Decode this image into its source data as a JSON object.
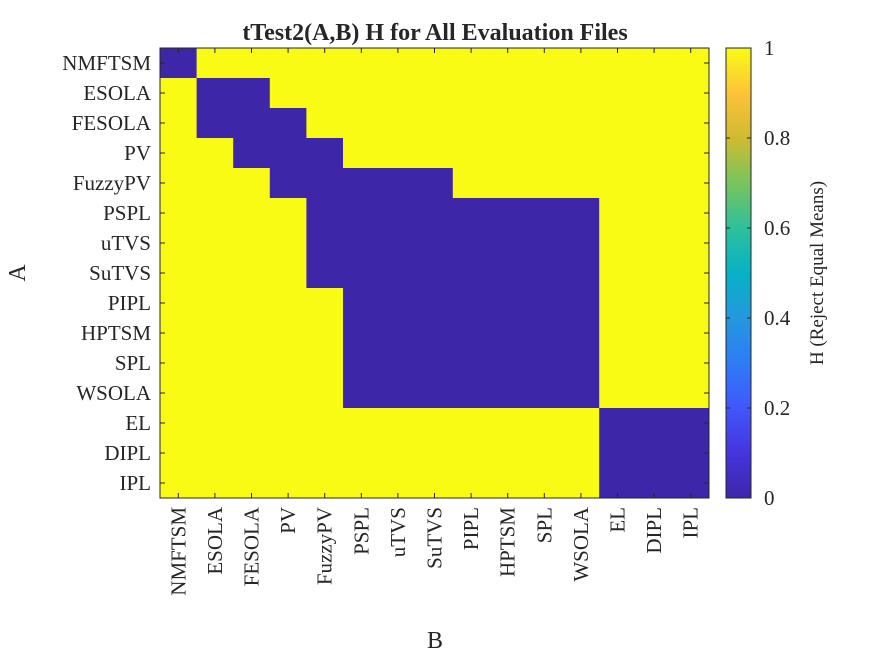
{
  "chart_data": {
    "type": "heatmap",
    "title": "tTest2(A,B) H for All Evaluation Files",
    "xlabel": "B",
    "ylabel": "A",
    "x_categories": [
      "NMFTSM",
      "ESOLA",
      "FESOLA",
      "PV",
      "FuzzyPV",
      "PSPL",
      "uTVS",
      "SuTVS",
      "PIPL",
      "HPTSM",
      "SPL",
      "WSOLA",
      "EL",
      "DIPL",
      "IPL"
    ],
    "y_categories": [
      "NMFTSM",
      "ESOLA",
      "FESOLA",
      "PV",
      "FuzzyPV",
      "PSPL",
      "uTVS",
      "SuTVS",
      "PIPL",
      "HPTSM",
      "SPL",
      "WSOLA",
      "EL",
      "DIPL",
      "IPL"
    ],
    "values": [
      [
        0,
        1,
        1,
        1,
        1,
        1,
        1,
        1,
        1,
        1,
        1,
        1,
        1,
        1,
        1
      ],
      [
        1,
        0,
        0,
        1,
        1,
        1,
        1,
        1,
        1,
        1,
        1,
        1,
        1,
        1,
        1
      ],
      [
        1,
        0,
        0,
        0,
        1,
        1,
        1,
        1,
        1,
        1,
        1,
        1,
        1,
        1,
        1
      ],
      [
        1,
        1,
        0,
        0,
        0,
        1,
        1,
        1,
        1,
        1,
        1,
        1,
        1,
        1,
        1
      ],
      [
        1,
        1,
        1,
        0,
        0,
        0,
        0,
        0,
        1,
        1,
        1,
        1,
        1,
        1,
        1
      ],
      [
        1,
        1,
        1,
        1,
        0,
        0,
        0,
        0,
        0,
        0,
        0,
        0,
        1,
        1,
        1
      ],
      [
        1,
        1,
        1,
        1,
        0,
        0,
        0,
        0,
        0,
        0,
        0,
        0,
        1,
        1,
        1
      ],
      [
        1,
        1,
        1,
        1,
        0,
        0,
        0,
        0,
        0,
        0,
        0,
        0,
        1,
        1,
        1
      ],
      [
        1,
        1,
        1,
        1,
        1,
        0,
        0,
        0,
        0,
        0,
        0,
        0,
        1,
        1,
        1
      ],
      [
        1,
        1,
        1,
        1,
        1,
        0,
        0,
        0,
        0,
        0,
        0,
        0,
        1,
        1,
        1
      ],
      [
        1,
        1,
        1,
        1,
        1,
        0,
        0,
        0,
        0,
        0,
        0,
        0,
        1,
        1,
        1
      ],
      [
        1,
        1,
        1,
        1,
        1,
        0,
        0,
        0,
        0,
        0,
        0,
        0,
        1,
        1,
        1
      ],
      [
        1,
        1,
        1,
        1,
        1,
        1,
        1,
        1,
        1,
        1,
        1,
        1,
        0,
        0,
        0
      ],
      [
        1,
        1,
        1,
        1,
        1,
        1,
        1,
        1,
        1,
        1,
        1,
        1,
        0,
        0,
        0
      ],
      [
        1,
        1,
        1,
        1,
        1,
        1,
        1,
        1,
        1,
        1,
        1,
        1,
        0,
        0,
        0
      ]
    ],
    "colorbar": {
      "label": "H (Reject Equal Means)",
      "range": [
        0,
        1
      ],
      "ticks": [
        "0",
        "0.2",
        "0.4",
        "0.6",
        "0.8",
        "1"
      ],
      "colormap": "parula"
    },
    "colors": {
      "low": "#3E26A8",
      "high": "#F9FB15"
    }
  }
}
